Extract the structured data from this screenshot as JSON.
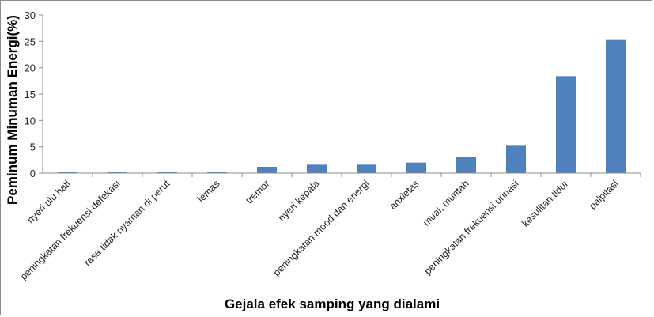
{
  "chart_data": {
    "type": "bar",
    "categories": [
      "nyeri ulu hati",
      "peningkatan frekuensi defekasi",
      "rasa tidak nyaman di perut",
      "lemas",
      "tremor",
      "nyeri kepala",
      "peningkatan mood dan energi",
      "anxietas",
      "mual, muntah",
      "peningkatan frekuensi urinasi",
      "kesulitan tidur",
      "palpitasi"
    ],
    "values": [
      0.3,
      0.3,
      0.3,
      0.3,
      1.2,
      1.6,
      1.6,
      2.0,
      3.0,
      5.2,
      18.4,
      25.4
    ],
    "xlabel": "Gejala efek samping yang dialami",
    "ylabel": "Peminum Minuman Energi(%)",
    "ylim": [
      0,
      30
    ],
    "yticks": [
      0,
      5,
      10,
      15,
      20,
      25,
      30
    ],
    "bar_color": "#4f81bd",
    "grid": false,
    "legend": "none"
  }
}
